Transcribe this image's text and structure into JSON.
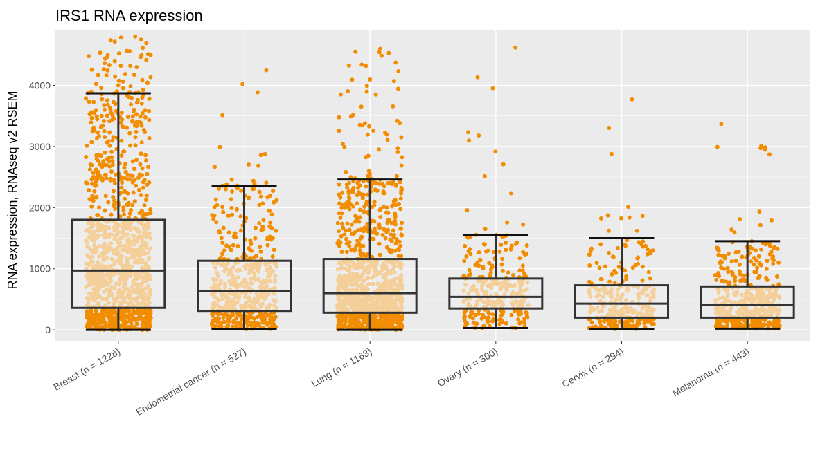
{
  "chart_data": {
    "type": "box",
    "title": "IRS1 RNA expression",
    "xlabel": "",
    "ylabel": "RNA expression, RNAseq v2 RSEM",
    "ylim": [
      -180,
      4900
    ],
    "yticks": [
      0,
      1000,
      2000,
      3000,
      4000
    ],
    "ytick_labels": [
      "0",
      "1000",
      "2000",
      "3000",
      "4000"
    ],
    "grid": true,
    "colors": {
      "panel": "#ebebeb",
      "grid": "#ffffff",
      "point_outside_box": "#f28c00",
      "point_inside_box": "#f7bd6a",
      "box_fill": "#f2f2f2",
      "box_line": "#333333"
    },
    "categories": [
      "Breast (n = 1228)",
      "Endometrial cancer (n = 527)",
      "Lung (n = 1163)",
      "Ovary (n = 300)",
      "Cervix (n = 294)",
      "Melanoma (n = 443)"
    ],
    "boxes": [
      {
        "n": 1228,
        "min": 0,
        "q1": 360,
        "median": 970,
        "q3": 1800,
        "max": 3870,
        "point_max": 4800
      },
      {
        "n": 527,
        "min": 10,
        "q1": 310,
        "median": 640,
        "q3": 1130,
        "max": 2360,
        "point_max": 4250
      },
      {
        "n": 1163,
        "min": 0,
        "q1": 280,
        "median": 600,
        "q3": 1160,
        "max": 2460,
        "point_max": 4600
      },
      {
        "n": 300,
        "min": 30,
        "q1": 350,
        "median": 540,
        "q3": 840,
        "max": 1550,
        "point_max": 4620
      },
      {
        "n": 294,
        "min": 10,
        "q1": 200,
        "median": 430,
        "q3": 730,
        "max": 1500,
        "point_max": 3770
      },
      {
        "n": 443,
        "min": 20,
        "q1": 200,
        "median": 410,
        "q3": 710,
        "max": 1450,
        "point_max": 3370
      }
    ]
  }
}
